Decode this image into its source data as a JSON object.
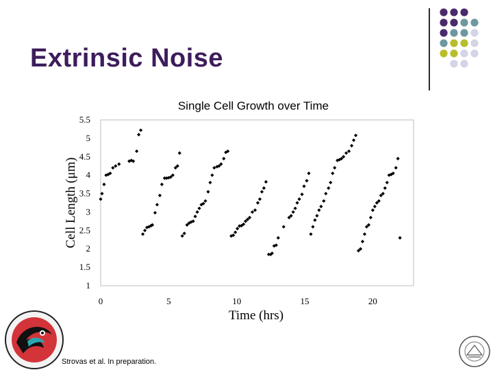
{
  "slide": {
    "title": "Extrinsic Noise",
    "citation": "Strovas et al. In preparation."
  },
  "decor": {
    "dot_colors": [
      "#4a2a6a",
      "#6e98a0",
      "#b8be2a",
      "#d4d4e6"
    ],
    "dot_grid": [
      [
        0,
        0,
        0,
        -1
      ],
      [
        0,
        0,
        1,
        1
      ],
      [
        0,
        1,
        1,
        3
      ],
      [
        1,
        2,
        2,
        3
      ],
      [
        2,
        2,
        3,
        3
      ],
      [
        -1,
        3,
        3,
        -1
      ]
    ]
  },
  "chart_data": {
    "type": "scatter",
    "title": "Single Cell Growth over Time",
    "xlabel": "Time (hrs)",
    "ylabel": "Cell Length (μm)",
    "xlim": [
      0,
      23
    ],
    "ylim": [
      1,
      5.5
    ],
    "xticks": [
      0,
      5,
      10,
      15,
      20
    ],
    "yticks": [
      1,
      1.5,
      2,
      2.5,
      3,
      3.5,
      4,
      4.5,
      5,
      5.5
    ],
    "grid": false,
    "marker_color": "#000000",
    "points": [
      [
        0.0,
        3.35
      ],
      [
        0.1,
        3.5
      ],
      [
        0.25,
        3.75
      ],
      [
        0.4,
        4.0
      ],
      [
        0.55,
        4.02
      ],
      [
        0.7,
        4.05
      ],
      [
        0.9,
        4.2
      ],
      [
        1.1,
        4.25
      ],
      [
        1.35,
        4.3
      ],
      [
        2.1,
        4.38
      ],
      [
        2.25,
        4.4
      ],
      [
        2.4,
        4.38
      ],
      [
        2.65,
        4.65
      ],
      [
        2.8,
        5.1
      ],
      [
        2.95,
        5.22
      ],
      [
        3.1,
        2.4
      ],
      [
        3.25,
        2.5
      ],
      [
        3.4,
        2.58
      ],
      [
        3.55,
        2.6
      ],
      [
        3.7,
        2.63
      ],
      [
        3.8,
        2.65
      ],
      [
        4.0,
        2.98
      ],
      [
        4.15,
        3.2
      ],
      [
        4.35,
        3.45
      ],
      [
        4.5,
        3.75
      ],
      [
        4.7,
        3.92
      ],
      [
        4.85,
        3.92
      ],
      [
        5.0,
        3.93
      ],
      [
        5.15,
        3.95
      ],
      [
        5.3,
        4.0
      ],
      [
        5.5,
        4.2
      ],
      [
        5.65,
        4.25
      ],
      [
        5.8,
        4.6
      ],
      [
        6.0,
        2.35
      ],
      [
        6.15,
        2.42
      ],
      [
        6.35,
        2.65
      ],
      [
        6.5,
        2.7
      ],
      [
        6.65,
        2.73
      ],
      [
        6.8,
        2.75
      ],
      [
        6.95,
        2.88
      ],
      [
        7.1,
        3.0
      ],
      [
        7.25,
        3.1
      ],
      [
        7.4,
        3.2
      ],
      [
        7.55,
        3.23
      ],
      [
        7.7,
        3.3
      ],
      [
        7.9,
        3.55
      ],
      [
        8.05,
        3.8
      ],
      [
        8.2,
        4.0
      ],
      [
        8.35,
        4.2
      ],
      [
        8.55,
        4.23
      ],
      [
        8.7,
        4.25
      ],
      [
        8.85,
        4.3
      ],
      [
        9.05,
        4.45
      ],
      [
        9.2,
        4.62
      ],
      [
        9.35,
        4.65
      ],
      [
        9.6,
        2.35
      ],
      [
        9.75,
        2.37
      ],
      [
        9.9,
        2.45
      ],
      [
        10.05,
        2.55
      ],
      [
        10.2,
        2.62
      ],
      [
        10.35,
        2.63
      ],
      [
        10.5,
        2.67
      ],
      [
        10.65,
        2.75
      ],
      [
        10.8,
        2.8
      ],
      [
        10.95,
        2.85
      ],
      [
        11.15,
        3.0
      ],
      [
        11.35,
        3.05
      ],
      [
        11.55,
        3.25
      ],
      [
        11.7,
        3.35
      ],
      [
        11.85,
        3.55
      ],
      [
        12.0,
        3.65
      ],
      [
        12.15,
        3.82
      ],
      [
        12.35,
        1.85
      ],
      [
        12.5,
        1.85
      ],
      [
        12.6,
        1.88
      ],
      [
        12.75,
        2.08
      ],
      [
        12.9,
        2.1
      ],
      [
        13.05,
        2.3
      ],
      [
        13.45,
        2.6
      ],
      [
        13.85,
        2.85
      ],
      [
        14.0,
        2.9
      ],
      [
        14.15,
        3.0
      ],
      [
        14.3,
        3.1
      ],
      [
        14.45,
        3.25
      ],
      [
        14.6,
        3.35
      ],
      [
        14.8,
        3.48
      ],
      [
        14.95,
        3.7
      ],
      [
        15.15,
        3.85
      ],
      [
        15.3,
        4.05
      ],
      [
        15.45,
        2.4
      ],
      [
        15.6,
        2.6
      ],
      [
        15.75,
        2.78
      ],
      [
        15.9,
        2.9
      ],
      [
        16.05,
        3.05
      ],
      [
        16.2,
        3.15
      ],
      [
        16.4,
        3.3
      ],
      [
        16.55,
        3.5
      ],
      [
        16.75,
        3.65
      ],
      [
        16.9,
        3.8
      ],
      [
        17.05,
        4.05
      ],
      [
        17.2,
        4.2
      ],
      [
        17.4,
        4.4
      ],
      [
        17.55,
        4.42
      ],
      [
        17.7,
        4.45
      ],
      [
        17.85,
        4.5
      ],
      [
        18.05,
        4.6
      ],
      [
        18.25,
        4.65
      ],
      [
        18.45,
        4.8
      ],
      [
        18.6,
        4.95
      ],
      [
        18.75,
        5.08
      ],
      [
        18.95,
        1.95
      ],
      [
        19.1,
        2.0
      ],
      [
        19.25,
        2.2
      ],
      [
        19.4,
        2.4
      ],
      [
        19.55,
        2.6
      ],
      [
        19.7,
        2.65
      ],
      [
        19.85,
        2.85
      ],
      [
        20.0,
        3.05
      ],
      [
        20.15,
        3.15
      ],
      [
        20.3,
        3.25
      ],
      [
        20.45,
        3.3
      ],
      [
        20.6,
        3.45
      ],
      [
        20.75,
        3.5
      ],
      [
        20.9,
        3.65
      ],
      [
        21.05,
        3.8
      ],
      [
        21.2,
        4.0
      ],
      [
        21.35,
        4.02
      ],
      [
        21.5,
        4.05
      ],
      [
        21.7,
        4.2
      ],
      [
        21.85,
        4.45
      ],
      [
        22.0,
        2.3
      ]
    ]
  }
}
